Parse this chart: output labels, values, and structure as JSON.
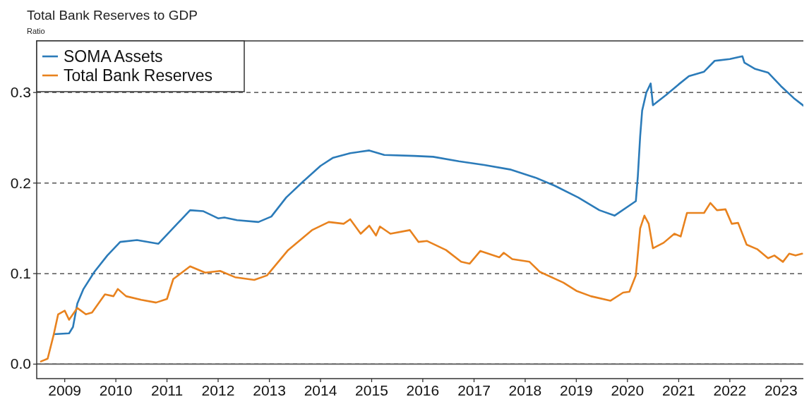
{
  "chart_data": {
    "type": "line",
    "title": "Total Bank Reserves to GDP",
    "ylabel": "Ratio",
    "xlim": [
      "2008-06-15",
      "2023-07-05"
    ],
    "ylim": [
      -0.016,
      0.357
    ],
    "xticks": [
      "2009",
      "2010",
      "2011",
      "2012",
      "2013",
      "2014",
      "2015",
      "2016",
      "2017",
      "2018",
      "2019",
      "2020",
      "2021",
      "2022",
      "2023"
    ],
    "yticks": [
      {
        "value": 0,
        "label": "0.0"
      },
      0.1,
      0.2,
      0.3
    ],
    "grid": "y",
    "legend": "top left",
    "line_style": "solid",
    "marker": "none",
    "ref_lines": [
      {
        "axis": "y",
        "value": 0,
        "label": null,
        "color": "#555555",
        "line_style": "solid"
      }
    ],
    "series": [
      {
        "name": "SOMA Assets",
        "color": "#2b7bb9",
        "x": [
          "2008-10-15",
          "2009-02-01",
          "2009-03-01",
          "2009-04-01",
          "2009-05-15",
          "2009-08-01",
          "2009-11-01",
          "2010-02-01",
          "2010-06-01",
          "2010-11-01",
          "2011-03-15",
          "2011-06-15",
          "2011-09-15",
          "2012-01-01",
          "2012-02-15",
          "2012-05-15",
          "2012-10-15",
          "2013-01-15",
          "2013-05-01",
          "2013-09-01",
          "2014-01-01",
          "2014-04-01",
          "2014-08-01",
          "2014-12-15",
          "2015-04-01",
          "2015-11-01",
          "2016-03-15",
          "2016-09-15",
          "2017-03-15",
          "2017-09-15",
          "2018-03-15",
          "2018-08-01",
          "2019-01-15",
          "2019-06-15",
          "2019-10-01",
          "2020-03-01",
          "2020-03-15",
          "2020-04-01",
          "2020-04-15",
          "2020-05-15",
          "2020-06-15",
          "2020-07-01",
          "2020-10-01",
          "2021-01-01",
          "2021-03-15",
          "2021-07-01",
          "2021-09-15",
          "2022-01-01",
          "2022-04-01",
          "2022-04-15",
          "2022-07-01",
          "2022-10-01",
          "2023-01-01",
          "2023-04-01",
          "2023-07-01"
        ],
        "values": [
          0.033,
          0.034,
          0.041,
          0.067,
          0.083,
          0.102,
          0.12,
          0.135,
          0.137,
          0.133,
          0.155,
          0.17,
          0.169,
          0.161,
          0.162,
          0.159,
          0.157,
          0.163,
          0.184,
          0.202,
          0.219,
          0.228,
          0.233,
          0.236,
          0.231,
          0.23,
          0.229,
          0.224,
          0.22,
          0.215,
          0.206,
          0.197,
          0.184,
          0.17,
          0.164,
          0.18,
          0.207,
          0.252,
          0.28,
          0.3,
          0.31,
          0.286,
          0.297,
          0.309,
          0.318,
          0.323,
          0.335,
          0.337,
          0.34,
          0.333,
          0.326,
          0.322,
          0.307,
          0.294,
          0.283
        ]
      },
      {
        "name": "Total Bank Reserves",
        "color": "#e8821e",
        "x": [
          "2008-07-15",
          "2008-09-01",
          "2008-10-15",
          "2008-11-15",
          "2009-01-01",
          "2009-02-01",
          "2009-04-01",
          "2009-06-01",
          "2009-07-15",
          "2009-10-15",
          "2009-12-15",
          "2010-01-15",
          "2010-03-15",
          "2010-07-01",
          "2010-10-15",
          "2011-01-01",
          "2011-02-15",
          "2011-06-15",
          "2011-10-01",
          "2012-01-15",
          "2012-05-01",
          "2012-09-15",
          "2012-12-15",
          "2013-05-15",
          "2013-11-01",
          "2014-03-01",
          "2014-06-15",
          "2014-08-01",
          "2014-10-15",
          "2014-12-15",
          "2015-02-01",
          "2015-03-01",
          "2015-05-15",
          "2015-10-01",
          "2015-12-01",
          "2016-02-01",
          "2016-06-15",
          "2016-10-01",
          "2016-12-01",
          "2017-02-15",
          "2017-07-01",
          "2017-08-01",
          "2017-10-01",
          "2018-02-01",
          "2018-04-15",
          "2018-10-01",
          "2019-01-01",
          "2019-04-15",
          "2019-09-01",
          "2019-12-01",
          "2020-01-15",
          "2020-03-01",
          "2020-04-01",
          "2020-05-01",
          "2020-06-01",
          "2020-07-01",
          "2020-09-15",
          "2020-12-01",
          "2021-01-15",
          "2021-03-01",
          "2021-07-01",
          "2021-08-15",
          "2021-10-01",
          "2021-12-01",
          "2022-01-15",
          "2022-03-01",
          "2022-05-01",
          "2022-07-15",
          "2022-10-01",
          "2022-11-15",
          "2023-01-15",
          "2023-03-01",
          "2023-04-15",
          "2023-06-01"
        ],
        "values": [
          0.003,
          0.006,
          0.033,
          0.055,
          0.059,
          0.049,
          0.062,
          0.055,
          0.057,
          0.077,
          0.075,
          0.083,
          0.075,
          0.071,
          0.068,
          0.072,
          0.094,
          0.108,
          0.101,
          0.103,
          0.096,
          0.093,
          0.098,
          0.126,
          0.148,
          0.157,
          0.155,
          0.16,
          0.144,
          0.153,
          0.142,
          0.152,
          0.144,
          0.148,
          0.135,
          0.136,
          0.126,
          0.113,
          0.111,
          0.125,
          0.118,
          0.123,
          0.116,
          0.113,
          0.102,
          0.09,
          0.081,
          0.075,
          0.07,
          0.079,
          0.08,
          0.098,
          0.15,
          0.164,
          0.155,
          0.128,
          0.134,
          0.144,
          0.141,
          0.167,
          0.167,
          0.178,
          0.17,
          0.171,
          0.155,
          0.156,
          0.132,
          0.127,
          0.117,
          0.12,
          0.113,
          0.122,
          0.12,
          0.122
        ]
      }
    ]
  }
}
